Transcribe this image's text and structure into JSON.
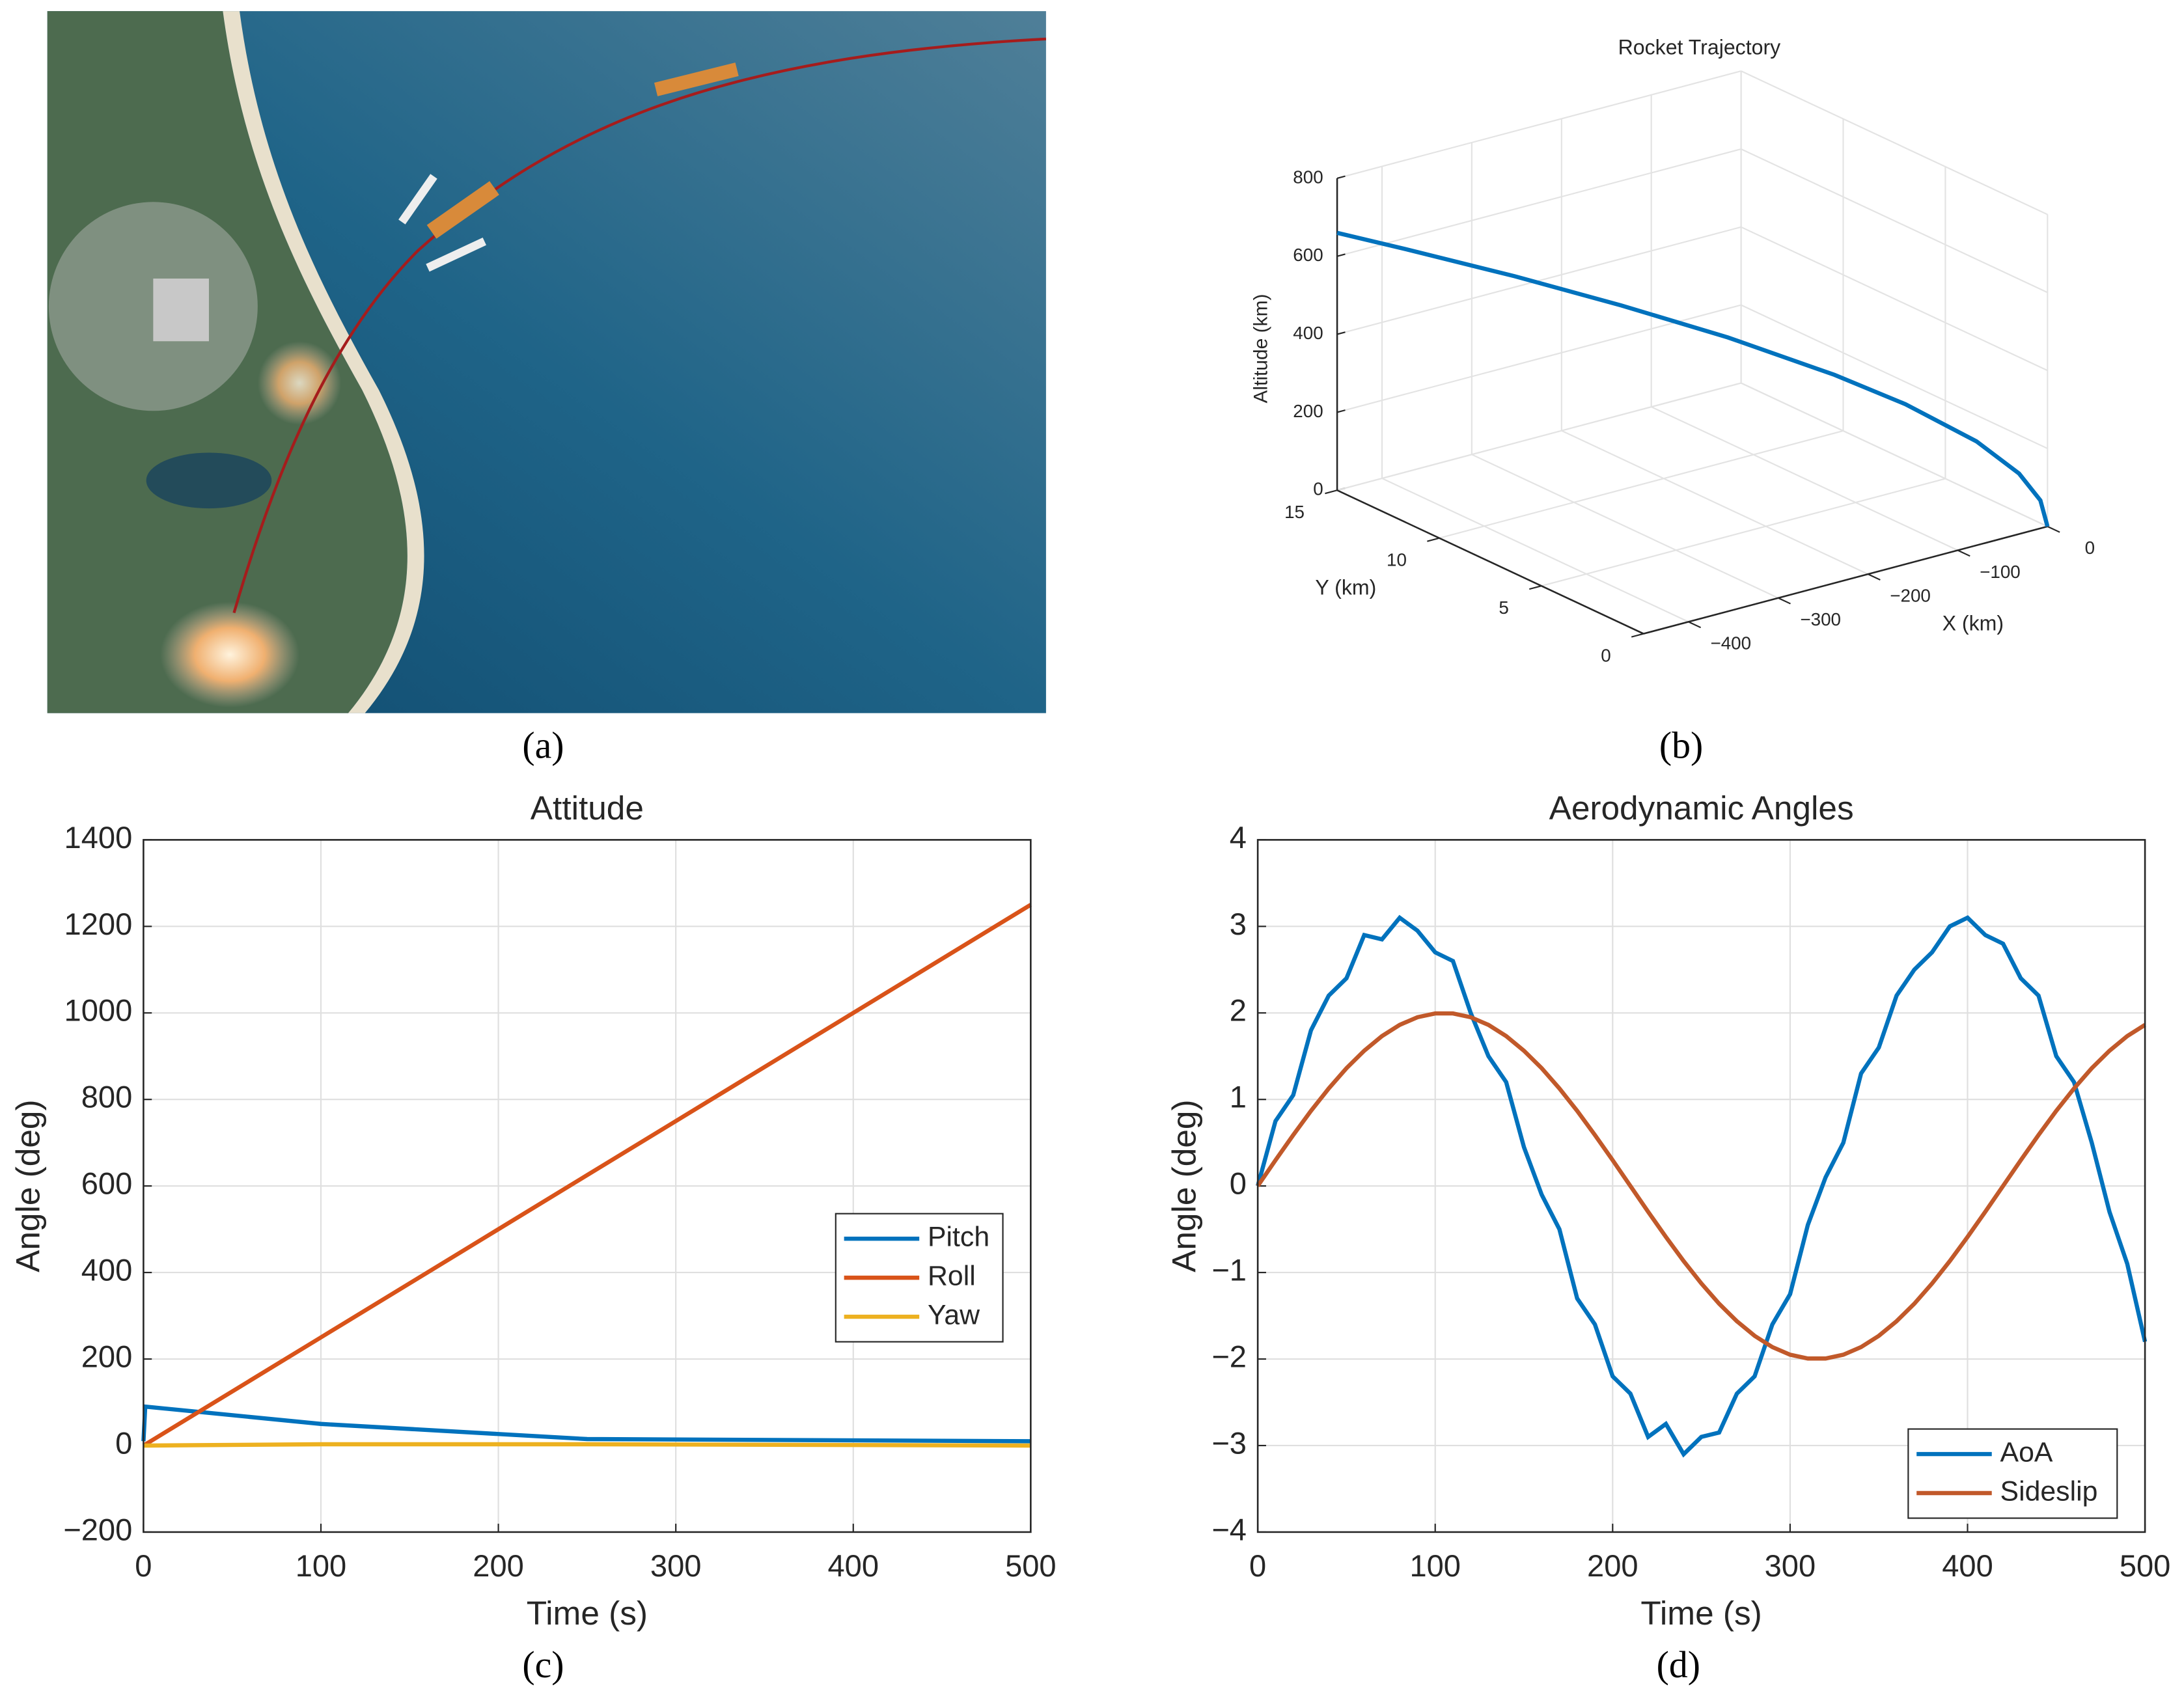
{
  "captions": [
    "(a)",
    "(b)",
    "(c)",
    "(d)"
  ],
  "chart_data": [
    {
      "type": "line3d",
      "title": "Rocket Trajectory",
      "xlabel": "X (km)",
      "ylabel": "Y (km)",
      "zlabel": "Altitude (km)",
      "x": [
        0,
        -4.5,
        -18,
        -45,
        -90,
        -135,
        -202.5,
        -270,
        -337.5,
        -405,
        -450
      ],
      "y": [
        0,
        0.15,
        0.6,
        1.5,
        3,
        4.5,
        6.75,
        9,
        11.25,
        13.5,
        15
      ],
      "z": [
        0,
        66,
        132,
        209,
        295,
        361,
        443,
        511,
        572,
        626,
        660
      ],
      "color": "#0072BD",
      "xlim": [
        -450,
        0
      ],
      "xticks": [
        {
          "value": -400,
          "label": "−400"
        },
        {
          "value": -300,
          "label": "−300"
        },
        {
          "value": -200,
          "label": "−200"
        },
        {
          "value": -100,
          "label": "−100"
        },
        0
      ],
      "ylim": [
        0,
        15
      ],
      "yticks": [
        0,
        5,
        10,
        15
      ],
      "zlim": [
        0,
        800
      ],
      "zticks": [
        0,
        200,
        400,
        600,
        800
      ],
      "grid": true
    },
    {
      "type": "line",
      "title": "Attitude",
      "xlabel": "Time (s)",
      "ylabel": "Angle (deg)",
      "x": [
        0,
        1,
        100,
        250,
        500
      ],
      "series": [
        {
          "name": "Pitch",
          "color": "#0072BD",
          "values": [
            10,
            90,
            50,
            15,
            10
          ]
        },
        {
          "name": "Roll",
          "color": "#D95319",
          "values": [
            0,
            2.5,
            250,
            625,
            1250
          ]
        },
        {
          "name": "Yaw",
          "color": "#EDB120",
          "values": [
            0,
            0,
            3,
            3,
            0
          ]
        }
      ],
      "xlim": [
        0,
        500
      ],
      "xticks": [
        0,
        100,
        200,
        300,
        400,
        500
      ],
      "ylim": [
        -200,
        1400
      ],
      "yticks": [
        {
          "value": -200,
          "label": "−200"
        },
        0,
        200,
        400,
        600,
        800,
        1000,
        1200,
        1400
      ],
      "grid": true,
      "legend": "east"
    },
    {
      "type": "line",
      "title": "Aerodynamic Angles",
      "xlabel": "Time (s)",
      "ylabel": "Angle (deg)",
      "x": [
        0,
        10,
        20,
        30,
        40,
        50,
        60,
        70,
        80,
        90,
        100,
        110,
        120,
        130,
        140,
        150,
        160,
        170,
        180,
        190,
        200,
        210,
        220,
        230,
        240,
        250,
        260,
        270,
        280,
        290,
        300,
        310,
        320,
        330,
        340,
        350,
        360,
        370,
        380,
        390,
        400,
        410,
        420,
        430,
        440,
        450,
        460,
        470,
        480,
        490,
        500
      ],
      "series": [
        {
          "name": "AoA",
          "color": "#0072BD",
          "values": [
            0,
            0.75,
            1.05,
            1.8,
            2.2,
            2.4,
            2.9,
            2.85,
            3.1,
            2.95,
            2.7,
            2.6,
            2.0,
            1.5,
            1.2,
            0.45,
            -0.1,
            -0.5,
            -1.3,
            -1.6,
            -2.2,
            -2.4,
            -2.9,
            -2.75,
            -3.1,
            -2.9,
            -2.85,
            -2.4,
            -2.2,
            -1.6,
            -1.25,
            -0.45,
            0.1,
            0.5,
            1.3,
            1.6,
            2.2,
            2.5,
            2.7,
            3.0,
            3.1,
            2.9,
            2.8,
            2.4,
            2.2,
            1.5,
            1.2,
            0.5,
            -0.3,
            -0.9,
            -1.8
          ]
        },
        {
          "name": "Sideslip",
          "color": "#C1592A",
          "values": [
            0,
            0.298,
            0.589,
            0.868,
            1.127,
            1.361,
            1.563,
            1.732,
            1.862,
            1.95,
            1.994,
            1.994,
            1.95,
            1.862,
            1.732,
            1.563,
            1.361,
            1.127,
            0.868,
            0.589,
            0.298,
            0,
            -0.298,
            -0.589,
            -0.868,
            -1.127,
            -1.361,
            -1.563,
            -1.732,
            -1.862,
            -1.95,
            -1.994,
            -1.994,
            -1.95,
            -1.862,
            -1.732,
            -1.563,
            -1.361,
            -1.127,
            -0.868,
            -0.589,
            -0.298,
            0,
            0.298,
            0.589,
            0.868,
            1.127,
            1.361,
            1.563,
            1.732,
            1.862
          ]
        }
      ],
      "xlim": [
        0,
        500
      ],
      "xticks": [
        0,
        100,
        200,
        300,
        400,
        500
      ],
      "ylim": [
        -4,
        4
      ],
      "yticks": [
        {
          "value": -4,
          "label": "−4"
        },
        {
          "value": -3,
          "label": "−3"
        },
        {
          "value": -2,
          "label": "−2"
        },
        {
          "value": -1,
          "label": "−1"
        },
        0,
        1,
        2,
        3,
        4
      ],
      "grid": true,
      "legend": "southeast"
    }
  ]
}
